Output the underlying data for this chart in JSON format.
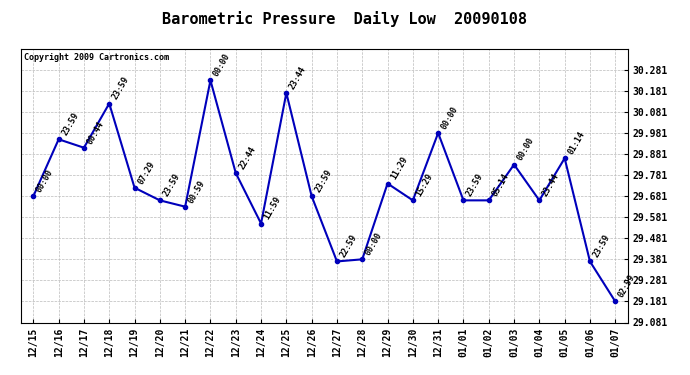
{
  "title": "Barometric Pressure  Daily Low  20090108",
  "copyright": "Copyright 2009 Cartronics.com",
  "x_labels": [
    "12/15",
    "12/16",
    "12/17",
    "12/18",
    "12/19",
    "12/20",
    "12/21",
    "12/22",
    "12/23",
    "12/24",
    "12/25",
    "12/26",
    "12/27",
    "12/28",
    "12/29",
    "12/30",
    "12/31",
    "01/01",
    "01/02",
    "01/03",
    "01/04",
    "01/05",
    "01/06",
    "01/07"
  ],
  "y_values": [
    29.681,
    29.951,
    29.911,
    30.121,
    29.721,
    29.661,
    29.631,
    30.231,
    29.791,
    29.551,
    30.171,
    29.681,
    29.371,
    29.381,
    29.741,
    29.661,
    29.981,
    29.661,
    29.661,
    29.831,
    29.661,
    29.861,
    29.371,
    29.181
  ],
  "point_labels": [
    "00:00",
    "23:59",
    "00:44",
    "23:59",
    "07:29",
    "23:59",
    "00:59",
    "00:00",
    "22:44",
    "11:59",
    "23:44",
    "23:59",
    "22:59",
    "00:00",
    "11:29",
    "15:29",
    "00:00",
    "23:59",
    "05:14",
    "00:00",
    "23:44",
    "01:14",
    "23:59",
    "02:59"
  ],
  "line_color": "#0000bb",
  "marker_color": "#0000bb",
  "background_color": "#ffffff",
  "grid_color": "#bbbbbb",
  "ylim_min": 29.081,
  "ylim_max": 30.381,
  "y_ticks": [
    29.081,
    29.181,
    29.281,
    29.381,
    29.481,
    29.581,
    29.681,
    29.781,
    29.881,
    29.981,
    30.081,
    30.181,
    30.281
  ],
  "title_fontsize": 11,
  "tick_fontsize": 7,
  "point_label_fontsize": 6
}
